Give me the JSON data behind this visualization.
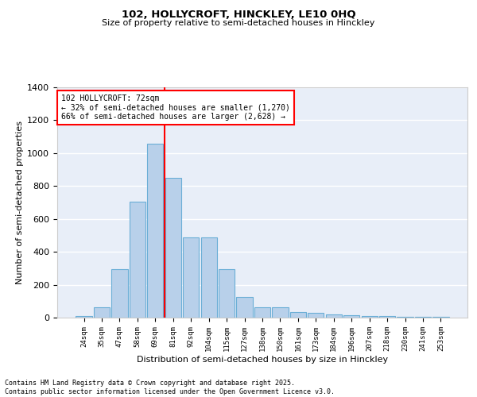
{
  "title1": "102, HOLLYCROFT, HINCKLEY, LE10 0HQ",
  "title2": "Size of property relative to semi-detached houses in Hinckley",
  "xlabel": "Distribution of semi-detached houses by size in Hinckley",
  "ylabel": "Number of semi-detached properties",
  "categories": [
    "24sqm",
    "35sqm",
    "47sqm",
    "58sqm",
    "69sqm",
    "81sqm",
    "92sqm",
    "104sqm",
    "115sqm",
    "127sqm",
    "138sqm",
    "150sqm",
    "161sqm",
    "173sqm",
    "184sqm",
    "196sqm",
    "207sqm",
    "218sqm",
    "230sqm",
    "241sqm",
    "253sqm"
  ],
  "values": [
    10,
    62,
    295,
    705,
    1055,
    848,
    487,
    487,
    293,
    125,
    65,
    65,
    35,
    27,
    20,
    15,
    10,
    8,
    5,
    5,
    5
  ],
  "bar_color": "#b8d0ea",
  "bar_edge_color": "#6aaed6",
  "vline_color": "red",
  "vline_x_index": 4.5,
  "background_color": "#e8eef8",
  "grid_color": "white",
  "ylim": [
    0,
    1400
  ],
  "yticks": [
    0,
    200,
    400,
    600,
    800,
    1000,
    1200,
    1400
  ],
  "annotation_text_line1": "102 HOLLYCROFT: 72sqm",
  "annotation_text_line2": "← 32% of semi-detached houses are smaller (1,270)",
  "annotation_text_line3": "66% of semi-detached houses are larger (2,628) →",
  "footer_line1": "Contains HM Land Registry data © Crown copyright and database right 2025.",
  "footer_line2": "Contains public sector information licensed under the Open Government Licence v3.0."
}
